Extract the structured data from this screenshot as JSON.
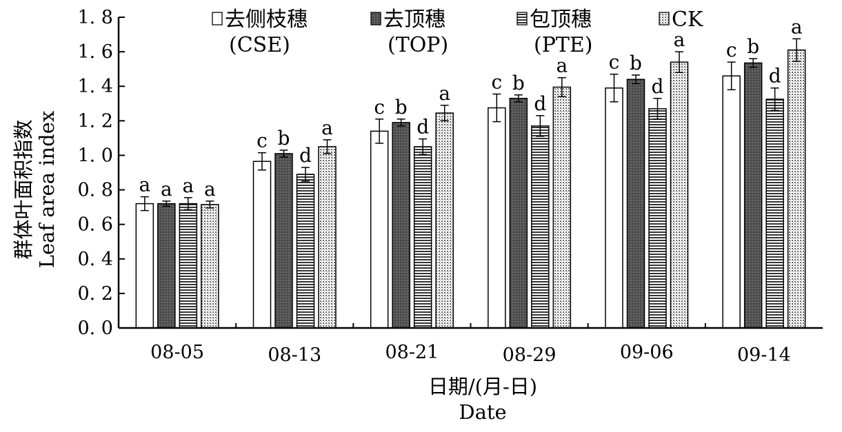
{
  "chart_data": {
    "type": "bar",
    "title": "",
    "xlabel": "日期/(月-日)",
    "xlabel_en": "Date",
    "ylabel": "群体叶面积指数",
    "ylabel_en": "Leaf area index",
    "ylim": [
      0,
      1.8
    ],
    "yticks": [
      "0. 0",
      "0. 2",
      "0. 4",
      "0. 6",
      "0. 8",
      "1. 0",
      "1. 2",
      "1. 4",
      "1. 6",
      "1. 8"
    ],
    "ytick_values": [
      0,
      0.2,
      0.4,
      0.6,
      0.8,
      1.0,
      1.2,
      1.4,
      1.6,
      1.8
    ],
    "grid": false,
    "legend_position": "top",
    "categories": [
      "08-05",
      "08-13",
      "08-21",
      "08-29",
      "09-06",
      "09-14"
    ],
    "series": [
      {
        "name": "去侧枝穗",
        "name_en": "(CSE)",
        "pattern": "white",
        "values": [
          0.72,
          0.965,
          1.14,
          1.275,
          1.39,
          1.46
        ],
        "errors": [
          0.04,
          0.05,
          0.07,
          0.08,
          0.08,
          0.08
        ],
        "labels": [
          "a",
          "c",
          "c",
          "c",
          "c",
          "c"
        ]
      },
      {
        "name": "去顶穗",
        "name_en": "(TOP)",
        "pattern": "dark",
        "values": [
          0.72,
          1.01,
          1.19,
          1.33,
          1.44,
          1.535
        ],
        "errors": [
          0.015,
          0.02,
          0.02,
          0.02,
          0.025,
          0.025
        ],
        "labels": [
          "a",
          "b",
          "b",
          "b",
          "b",
          "b"
        ]
      },
      {
        "name": "包顶穗",
        "name_en": "(PTE)",
        "pattern": "horizontal",
        "values": [
          0.72,
          0.89,
          1.05,
          1.17,
          1.27,
          1.325
        ],
        "errors": [
          0.035,
          0.04,
          0.045,
          0.06,
          0.06,
          0.065
        ],
        "labels": [
          "a",
          "d",
          "d",
          "d",
          "d",
          "d"
        ]
      },
      {
        "name": "CK",
        "name_en": "",
        "pattern": "dotted",
        "values": [
          0.715,
          1.05,
          1.245,
          1.395,
          1.54,
          1.61
        ],
        "errors": [
          0.02,
          0.04,
          0.045,
          0.055,
          0.06,
          0.065
        ],
        "labels": [
          "a",
          "a",
          "a",
          "a",
          "a",
          "a"
        ]
      }
    ]
  }
}
